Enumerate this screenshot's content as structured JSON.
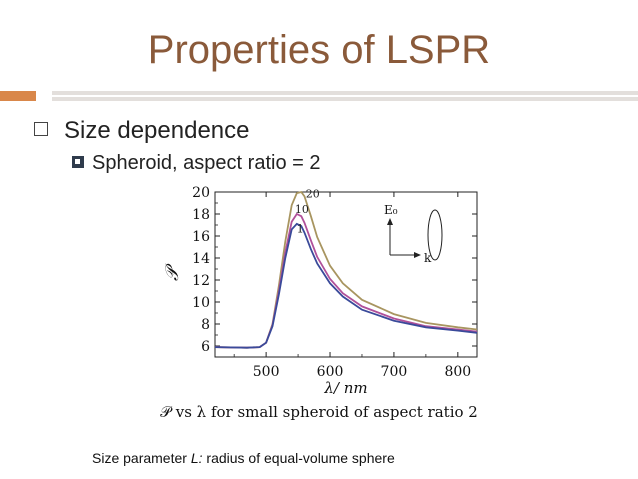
{
  "slide": {
    "title": "Properties of LSPR",
    "bullet_level1": "Size dependence",
    "bullet_level2": "Spheroid, aspect ratio = 2",
    "caption": "𝒫 vs λ for small spheroid of aspect ratio 2",
    "footnote_prefix": "Size parameter ",
    "footnote_symbol": "L:",
    "footnote_suffix": " radius of equal-volume sphere",
    "accent_color": "#d9874a",
    "title_color": "#8a5a3a"
  },
  "chart_data": {
    "type": "line",
    "xlabel": "λ/ nm",
    "ylabel": "𝒫",
    "xlim": [
      420,
      830
    ],
    "ylim": [
      5,
      20
    ],
    "x_ticks": [
      500,
      600,
      700,
      800
    ],
    "y_ticks": [
      6,
      8,
      10,
      12,
      14,
      16,
      18,
      20
    ],
    "inset_label": "E₀",
    "inset_k_label": "k",
    "series": [
      {
        "name": "20",
        "color": "#a89560",
        "x": [
          420,
          470,
          490,
          500,
          510,
          520,
          530,
          540,
          548,
          555,
          560,
          570,
          580,
          600,
          620,
          650,
          700,
          750,
          800,
          830
        ],
        "y": [
          5.9,
          5.85,
          5.9,
          6.3,
          8.0,
          11.5,
          15.5,
          18.8,
          19.9,
          20.0,
          19.6,
          17.8,
          15.9,
          13.3,
          11.7,
          10.2,
          8.9,
          8.1,
          7.7,
          7.5
        ]
      },
      {
        "name": "10",
        "color": "#b0509a",
        "x": [
          420,
          470,
          490,
          500,
          510,
          520,
          530,
          540,
          548,
          555,
          560,
          570,
          580,
          600,
          620,
          650,
          700,
          750,
          800,
          830
        ],
        "y": [
          5.9,
          5.85,
          5.9,
          6.3,
          7.9,
          11.0,
          14.5,
          17.3,
          18.0,
          17.8,
          17.2,
          15.6,
          14.1,
          12.1,
          10.8,
          9.6,
          8.5,
          7.8,
          7.5,
          7.3
        ]
      },
      {
        "name": "1",
        "color": "#3a4a9a",
        "x": [
          420,
          470,
          490,
          500,
          510,
          520,
          530,
          540,
          548,
          555,
          560,
          570,
          580,
          600,
          620,
          650,
          700,
          750,
          800,
          830
        ],
        "y": [
          5.9,
          5.85,
          5.9,
          6.3,
          7.8,
          10.7,
          14.0,
          16.6,
          17.1,
          16.9,
          16.3,
          14.8,
          13.5,
          11.7,
          10.5,
          9.3,
          8.3,
          7.7,
          7.4,
          7.2
        ]
      }
    ]
  }
}
